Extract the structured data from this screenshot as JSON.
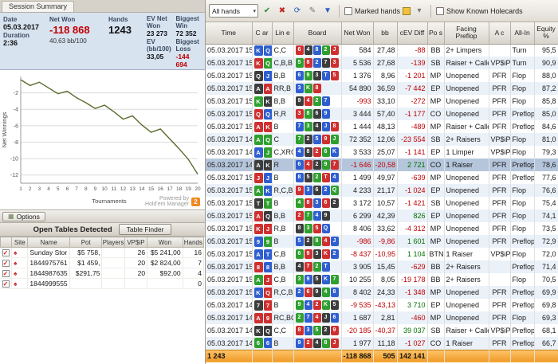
{
  "left": {
    "tab": "Session Summary",
    "summary": {
      "date_label": "Date",
      "date": "05.03.2017",
      "net_won_label": "Net Won",
      "net_won": "-118 868",
      "hands_label": "Hands",
      "hands": "1243",
      "ev_net_won_label": "EV Net Won",
      "ev_net_won": "23 273",
      "biggest_win_label": "Biggest Win",
      "biggest_win": "72 352",
      "duration_label": "Duration",
      "duration": "2:36",
      "bb100": "40,63 bb/100",
      "ev_bb100_label": "EV (bb/100)",
      "ev_bb100": "33,05",
      "biggest_loss_label": "Biggest Loss",
      "biggest_loss": "-144 694"
    },
    "options_button": "Options",
    "powered_by_line1": "Powered by",
    "powered_by_line2": "Hold'em Manager",
    "powered_badge": "2",
    "open_tables": {
      "title": "Open Tables Detected",
      "table_finder_button": "Table Finder",
      "columns": [
        {
          "key": "check",
          "label": ""
        },
        {
          "key": "site",
          "label": "Site"
        },
        {
          "key": "name",
          "label": "Name"
        },
        {
          "key": "pot",
          "label": "Pot"
        },
        {
          "key": "players",
          "label": "Players"
        },
        {
          "key": "vpsip",
          "label": "VP$iP"
        },
        {
          "key": "won",
          "label": "Won"
        },
        {
          "key": "hands",
          "label": "Hands"
        }
      ],
      "rows": [
        {
          "checked": true,
          "name": "Sunday Stor",
          "pot": "$5 758,",
          "players": "",
          "vpsip": "26",
          "won": "$5 241,00",
          "hands": "16"
        },
        {
          "checked": true,
          "name": "1844975761",
          "pot": "$1 459,",
          "players": "",
          "vpsip": "20",
          "won": "$2 824,00",
          "hands": "7"
        },
        {
          "checked": true,
          "name": "1844987635",
          "pot": "$291,75",
          "players": "",
          "vpsip": "20",
          "won": "$92,00",
          "hands": "4"
        },
        {
          "checked": true,
          "name": "1844999555",
          "pot": "",
          "players": "",
          "vpsip": "",
          "won": "",
          "hands": "0"
        }
      ]
    }
  },
  "chart_data": {
    "type": "line",
    "title": "",
    "xlabel": "Tournaments",
    "ylabel": "Net Winnings",
    "x": [
      1,
      2,
      3,
      4,
      5,
      6,
      7,
      8,
      9,
      10,
      11,
      12,
      13,
      14,
      15,
      16,
      17,
      18,
      19,
      20
    ],
    "series": [
      {
        "name": "Net Winnings",
        "values": [
          -0.4,
          -1.1,
          -0.7,
          -1.4,
          -2.1,
          -1.8,
          -2.6,
          -3.2,
          -3.9,
          -3.5,
          -4.3,
          -5.2,
          -4.8,
          -5.9,
          -6.8,
          -6.4,
          -7.6,
          -8.8,
          -10.1,
          -11.9
        ]
      }
    ],
    "ylim": [
      -13,
      0
    ],
    "yticks": [
      -2,
      -4,
      -6,
      -8,
      -10,
      -12
    ],
    "grid": true,
    "legend_position": "none",
    "line_color": "#5a6b2f"
  },
  "right": {
    "toolbar": {
      "filter_dropdown": "All hands",
      "marked_hands_label": "Marked hands",
      "show_known_label": "Show Known Holecards"
    },
    "table": {
      "columns": [
        {
          "key": "time",
          "label": "Time"
        },
        {
          "key": "cards",
          "label": "C ar"
        },
        {
          "key": "line",
          "label": "Lin e"
        },
        {
          "key": "board",
          "label": "Board"
        },
        {
          "key": "net_won",
          "label": "Net Won"
        },
        {
          "key": "bb",
          "label": "bb"
        },
        {
          "key": "cev_diff",
          "label": "cEV Diff"
        },
        {
          "key": "pos",
          "label": "Po s"
        },
        {
          "key": "facing_preflop",
          "label": "Facing Preflop"
        },
        {
          "key": "action",
          "label": "A c"
        },
        {
          "key": "all_in",
          "label": "All-In"
        },
        {
          "key": "equity",
          "label": "Equity %"
        }
      ],
      "rows": [
        {
          "t": "05.03.2017 15:4",
          "hc": [
            "Kd",
            "Qd"
          ],
          "ln": "C,C",
          "bd": [
            "6h",
            "4s",
            "8d",
            "2c",
            "Jh"
          ],
          "net": "584",
          "bb": "27,48",
          "cev": "-88",
          "pos": "BB",
          "fp": "2+ Limpers",
          "act": "",
          "ai": "Turn",
          "eq": "95,5",
          "sel": false
        },
        {
          "t": "05.03.2017 15:4",
          "hc": [
            "Kh",
            "Qc"
          ],
          "ln": "C,B,B",
          "bd": [
            "5c",
            "8h",
            "2d",
            "7s",
            "3h"
          ],
          "net": "5 536",
          "bb": "27,68",
          "cev": "-139",
          "pos": "SB",
          "fp": "Raiser + Callers",
          "act": "VP$iP",
          "ai": "Turn",
          "eq": "90,9",
          "sel": false
        },
        {
          "t": "05.03.2017 15:4",
          "hc": [
            "Qs",
            "Jd"
          ],
          "ln": "B,B",
          "bd": [
            "6d",
            "9c",
            "3s",
            "Td",
            "5h"
          ],
          "net": "1 376",
          "bb": "8,96",
          "cev": "-1 201",
          "pos": "MP",
          "fp": "Unopened",
          "act": "PFR",
          "ai": "Flop",
          "eq": "88,0",
          "sel": false
        },
        {
          "t": "05.03.2017 15:3",
          "hc": [
            "As",
            "Ah"
          ],
          "ln": "RR,B",
          "bd": [
            "3d",
            "Kc",
            "8h"
          ],
          "net": "54 890",
          "bb": "36,59",
          "cev": "-7 442",
          "pos": "EP",
          "fp": "Unopened",
          "act": "PFR",
          "ai": "Flop",
          "eq": "87,2",
          "sel": false
        },
        {
          "t": "05.03.2017 15:3",
          "hc": [
            "Kc",
            "Ks"
          ],
          "ln": "B,B",
          "bd": [
            "9s",
            "4h",
            "2c",
            "7d"
          ],
          "net": "-993",
          "bb": "33,10",
          "cev": "-272",
          "pos": "MP",
          "fp": "Unopened",
          "act": "PFR",
          "ai": "Flop",
          "eq": "85,8",
          "sel": false
        },
        {
          "t": "05.03.2017 15:3",
          "hc": [
            "Qh",
            "Qd"
          ],
          "ln": "R,R",
          "bd": [
            "3h",
            "8c",
            "6s",
            "9d"
          ],
          "net": "3 444",
          "bb": "57,40",
          "cev": "-1 177",
          "pos": "CO",
          "fp": "Unopened",
          "act": "PFR",
          "ai": "Preflop",
          "eq": "85,0",
          "sel": false
        },
        {
          "t": "05.03.2017 15:3",
          "hc": [
            "Ah",
            "Kh"
          ],
          "ln": "B",
          "bd": [
            "7d",
            "3c",
            "4s",
            "Jd",
            "8h"
          ],
          "net": "1 444",
          "bb": "48,13",
          "cev": "-489",
          "pos": "MP",
          "fp": "Raiser + Callers",
          "act": "PFR",
          "ai": "Preflop",
          "eq": "84,6",
          "sel": false
        },
        {
          "t": "05.03.2017 14:2",
          "hc": [
            "Ac",
            "Qc"
          ],
          "ln": "C",
          "bd": [
            "7c",
            "2s",
            "5d",
            "9h",
            "Jc"
          ],
          "net": "72 352",
          "bb": "12,06",
          "cev": "-23 554",
          "pos": "SB",
          "fp": "2+ Raisers",
          "act": "VP$iP",
          "ai": "Flop",
          "eq": "81,0",
          "sel": false
        },
        {
          "t": "05.03.2017 14:2",
          "hc": [
            "Ad",
            "Jc"
          ],
          "ln": "C,XRC",
          "bd": [
            "4d",
            "8s",
            "2h",
            "6c",
            "Kd"
          ],
          "net": "3 533",
          "bb": "25,07",
          "cev": "-1 141",
          "pos": "EP",
          "fp": "1 Limper",
          "act": "VP$iP",
          "ai": "Flop",
          "eq": "79,3",
          "sel": false
        },
        {
          "t": "05.03.2017 14:2",
          "hc": [
            "As",
            "Ks"
          ],
          "ln": "R",
          "bd": [
            "6d",
            "4h",
            "2s",
            "9c",
            "7h"
          ],
          "net": "-1 646",
          "bb": "-20,58",
          "cev": "2 721",
          "pos": "CO",
          "fp": "1 Raiser",
          "act": "PFR",
          "ai": "Preflop",
          "eq": "78,6",
          "sel": true
        },
        {
          "t": "05.03.2017 15:1",
          "hc": [
            "Jh",
            "Jd"
          ],
          "ln": "B",
          "bd": [
            "8d",
            "5s",
            "2c",
            "Th",
            "4d"
          ],
          "net": "1 499",
          "bb": "49,97",
          "cev": "-639",
          "pos": "MP",
          "fp": "Unopened",
          "act": "PFR",
          "ai": "Preflop",
          "eq": "77,6",
          "sel": false
        },
        {
          "t": "05.03.2017 15:1",
          "hc": [
            "Ac",
            "Kd"
          ],
          "ln": "R,C,B",
          "bd": [
            "9h",
            "3d",
            "6s",
            "2d",
            "Qc"
          ],
          "net": "4 233",
          "bb": "21,17",
          "cev": "-1 024",
          "pos": "EP",
          "fp": "Unopened",
          "act": "PFR",
          "ai": "Flop",
          "eq": "76,6",
          "sel": false
        },
        {
          "t": "05.03.2017 15:1",
          "hc": [
            "Ts",
            "Tc"
          ],
          "ln": "B",
          "bd": [
            "4c",
            "8h",
            "3d",
            "6h",
            "2s"
          ],
          "net": "3 172",
          "bb": "10,57",
          "cev": "-1 421",
          "pos": "SB",
          "fp": "Unopened",
          "act": "PFR",
          "ai": "Flop",
          "eq": "75,4",
          "sel": false
        },
        {
          "t": "05.03.2017 15:1",
          "hc": [
            "Ah",
            "Qs"
          ],
          "ln": "B,B",
          "bd": [
            "2h",
            "7c",
            "4d",
            "9s"
          ],
          "net": "6 299",
          "bb": "42,39",
          "cev": "826",
          "pos": "EP",
          "fp": "Unopened",
          "act": "PFR",
          "ai": "Flop",
          "eq": "74,1",
          "sel": false
        },
        {
          "t": "05.03.2017 15:1",
          "hc": [
            "Kh",
            "Jh"
          ],
          "ln": "R,B",
          "bd": [
            "8s",
            "3c",
            "5h",
            "Qd"
          ],
          "net": "8 406",
          "bb": "33,62",
          "cev": "-4 312",
          "pos": "MP",
          "fp": "Unopened",
          "act": "PFR",
          "ai": "Flop",
          "eq": "73,5",
          "sel": false
        },
        {
          "t": "05.03.2017 15:0",
          "hc": [
            "9d",
            "9c"
          ],
          "ln": "B",
          "bd": [
            "5d",
            "2s",
            "8c",
            "4h",
            "Jd"
          ],
          "net": "-986",
          "bb": "-9,86",
          "cev": "1 601",
          "pos": "MP",
          "fp": "Unopened",
          "act": "PFR",
          "ai": "Preflop",
          "eq": "72,9",
          "sel": false
        },
        {
          "t": "05.03.2017 15:0",
          "hc": [
            "Ad",
            "Td"
          ],
          "ln": "C,B",
          "bd": [
            "6c",
            "9h",
            "3s",
            "Kh",
            "2d"
          ],
          "net": "-8 437",
          "bb": "-10,95",
          "cev": "1 104",
          "pos": "BTN",
          "fp": "1 Raiser",
          "act": "VP$iP",
          "ai": "Flop",
          "eq": "72,0",
          "sel": false
        },
        {
          "t": "05.03.2017 15:0",
          "hc": [
            "8h",
            "8d"
          ],
          "ln": "B,B",
          "bd": [
            "4s",
            "7h",
            "2c",
            "Td"
          ],
          "net": "3 905",
          "bb": "15,45",
          "cev": "-629",
          "pos": "BB",
          "fp": "2+ Raisers",
          "act": "",
          "ai": "Preflop",
          "eq": "71,4",
          "sel": false
        },
        {
          "t": "05.03.2017 15:0",
          "hc": [
            "Ac",
            "Jh"
          ],
          "ln": "C,B",
          "bd": [
            "3c",
            "9d",
            "5s",
            "Kd",
            "7c"
          ],
          "net": "10 255",
          "bb": "8,05",
          "cev": "-19 178",
          "pos": "BB",
          "fp": "2+ Raisers",
          "act": "",
          "ai": "Flop",
          "eq": "70,5",
          "sel": false
        },
        {
          "t": "05.03.2017 15:0",
          "hc": [
            "Kd",
            "Qh"
          ],
          "ln": "R,C,B",
          "bd": [
            "2d",
            "6h",
            "9s",
            "4c",
            "8d"
          ],
          "net": "8 402",
          "bb": "24,33",
          "cev": "-1 348",
          "pos": "MP",
          "fp": "Unopened",
          "act": "PFR",
          "ai": "Preflop",
          "eq": "69,9",
          "sel": false
        },
        {
          "t": "05.03.2017 14:5",
          "hc": [
            "7s",
            "7h"
          ],
          "ln": "B",
          "bd": [
            "9c",
            "4d",
            "2h",
            "Kc",
            "5s"
          ],
          "net": "-9 535",
          "bb": "-43,13",
          "cev": "3 710",
          "pos": "EP",
          "fp": "Unopened",
          "act": "PFR",
          "ai": "Preflop",
          "eq": "69,8",
          "sel": false
        },
        {
          "t": "05.03.2017 14:5",
          "hc": [
            "Ah",
            "9h"
          ],
          "ln": "RC,BC",
          "bd": [
            "2c",
            "7d",
            "4h",
            "Js",
            "6d"
          ],
          "net": "1 687",
          "bb": "2,81",
          "cev": "-460",
          "pos": "MP",
          "fp": "Unopened",
          "act": "PFR",
          "ai": "Flop",
          "eq": "69,3",
          "sel": false
        },
        {
          "t": "05.03.2017 14:5",
          "hc": [
            "Ks",
            "Qs"
          ],
          "ln": "C,C",
          "bd": [
            "8h",
            "3d",
            "5c",
            "2s",
            "9h"
          ],
          "net": "-20 185",
          "bb": "-40,37",
          "cev": "39 037",
          "pos": "SB",
          "fp": "Raiser + Callers",
          "act": "VP$iP",
          "ai": "Preflop",
          "eq": "68,1",
          "sel": false
        },
        {
          "t": "05.03.2017 14:5",
          "hc": [
            "6c",
            "6d"
          ],
          "ln": "B",
          "bd": [
            "9d",
            "2h",
            "4s",
            "8c",
            "Jh"
          ],
          "net": "1 977",
          "bb": "11,18",
          "cev": "-1 027",
          "pos": "CO",
          "fp": "1 Raiser",
          "act": "PFR",
          "ai": "Preflop",
          "eq": "66,7",
          "sel": false
        }
      ],
      "totals": {
        "hands": "1 243",
        "net": "-118 868",
        "bb": "505",
        "cev": "142 141"
      }
    }
  }
}
